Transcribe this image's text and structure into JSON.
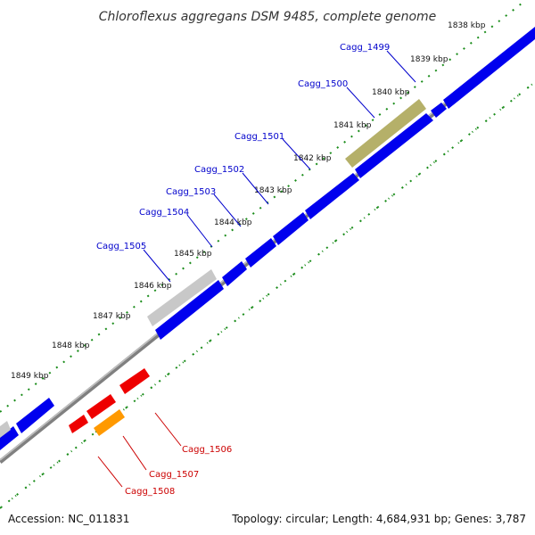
{
  "title": "Chloroflexus aggregans DSM 9485, complete genome",
  "accession": "Accession: NC_011831",
  "summary": "Topology: circular; Length: 4,684,931 bp; Genes: 3,787",
  "kbp_ticks": [
    "1838 kbp",
    "1839 kbp",
    "1840 kbp",
    "1841 kbp",
    "1842 kbp",
    "1843 kbp",
    "1844 kbp",
    "1845 kbp",
    "1846 kbp",
    "1847 kbp",
    "1848 kbp",
    "1849 kbp"
  ],
  "upper_genes": [
    "Cagg_1499",
    "Cagg_1500",
    "Cagg_1501",
    "Cagg_1502",
    "Cagg_1503",
    "Cagg_1504",
    "Cagg_1505"
  ],
  "lower_genes": [
    "Cagg_1506",
    "Cagg_1507",
    "Cagg_1508"
  ],
  "colors": {
    "forward_gene": "#0000ee",
    "highlight_gene": "#b5b069",
    "gray_gene": "#c8c8c8",
    "reverse_gene": "#ee0000",
    "orange_gene": "#ff9900",
    "backbone": "#808080",
    "gc_dots": "#1a8c1a",
    "label_forward": "#0000cc",
    "label_reverse": "#cc0000"
  }
}
